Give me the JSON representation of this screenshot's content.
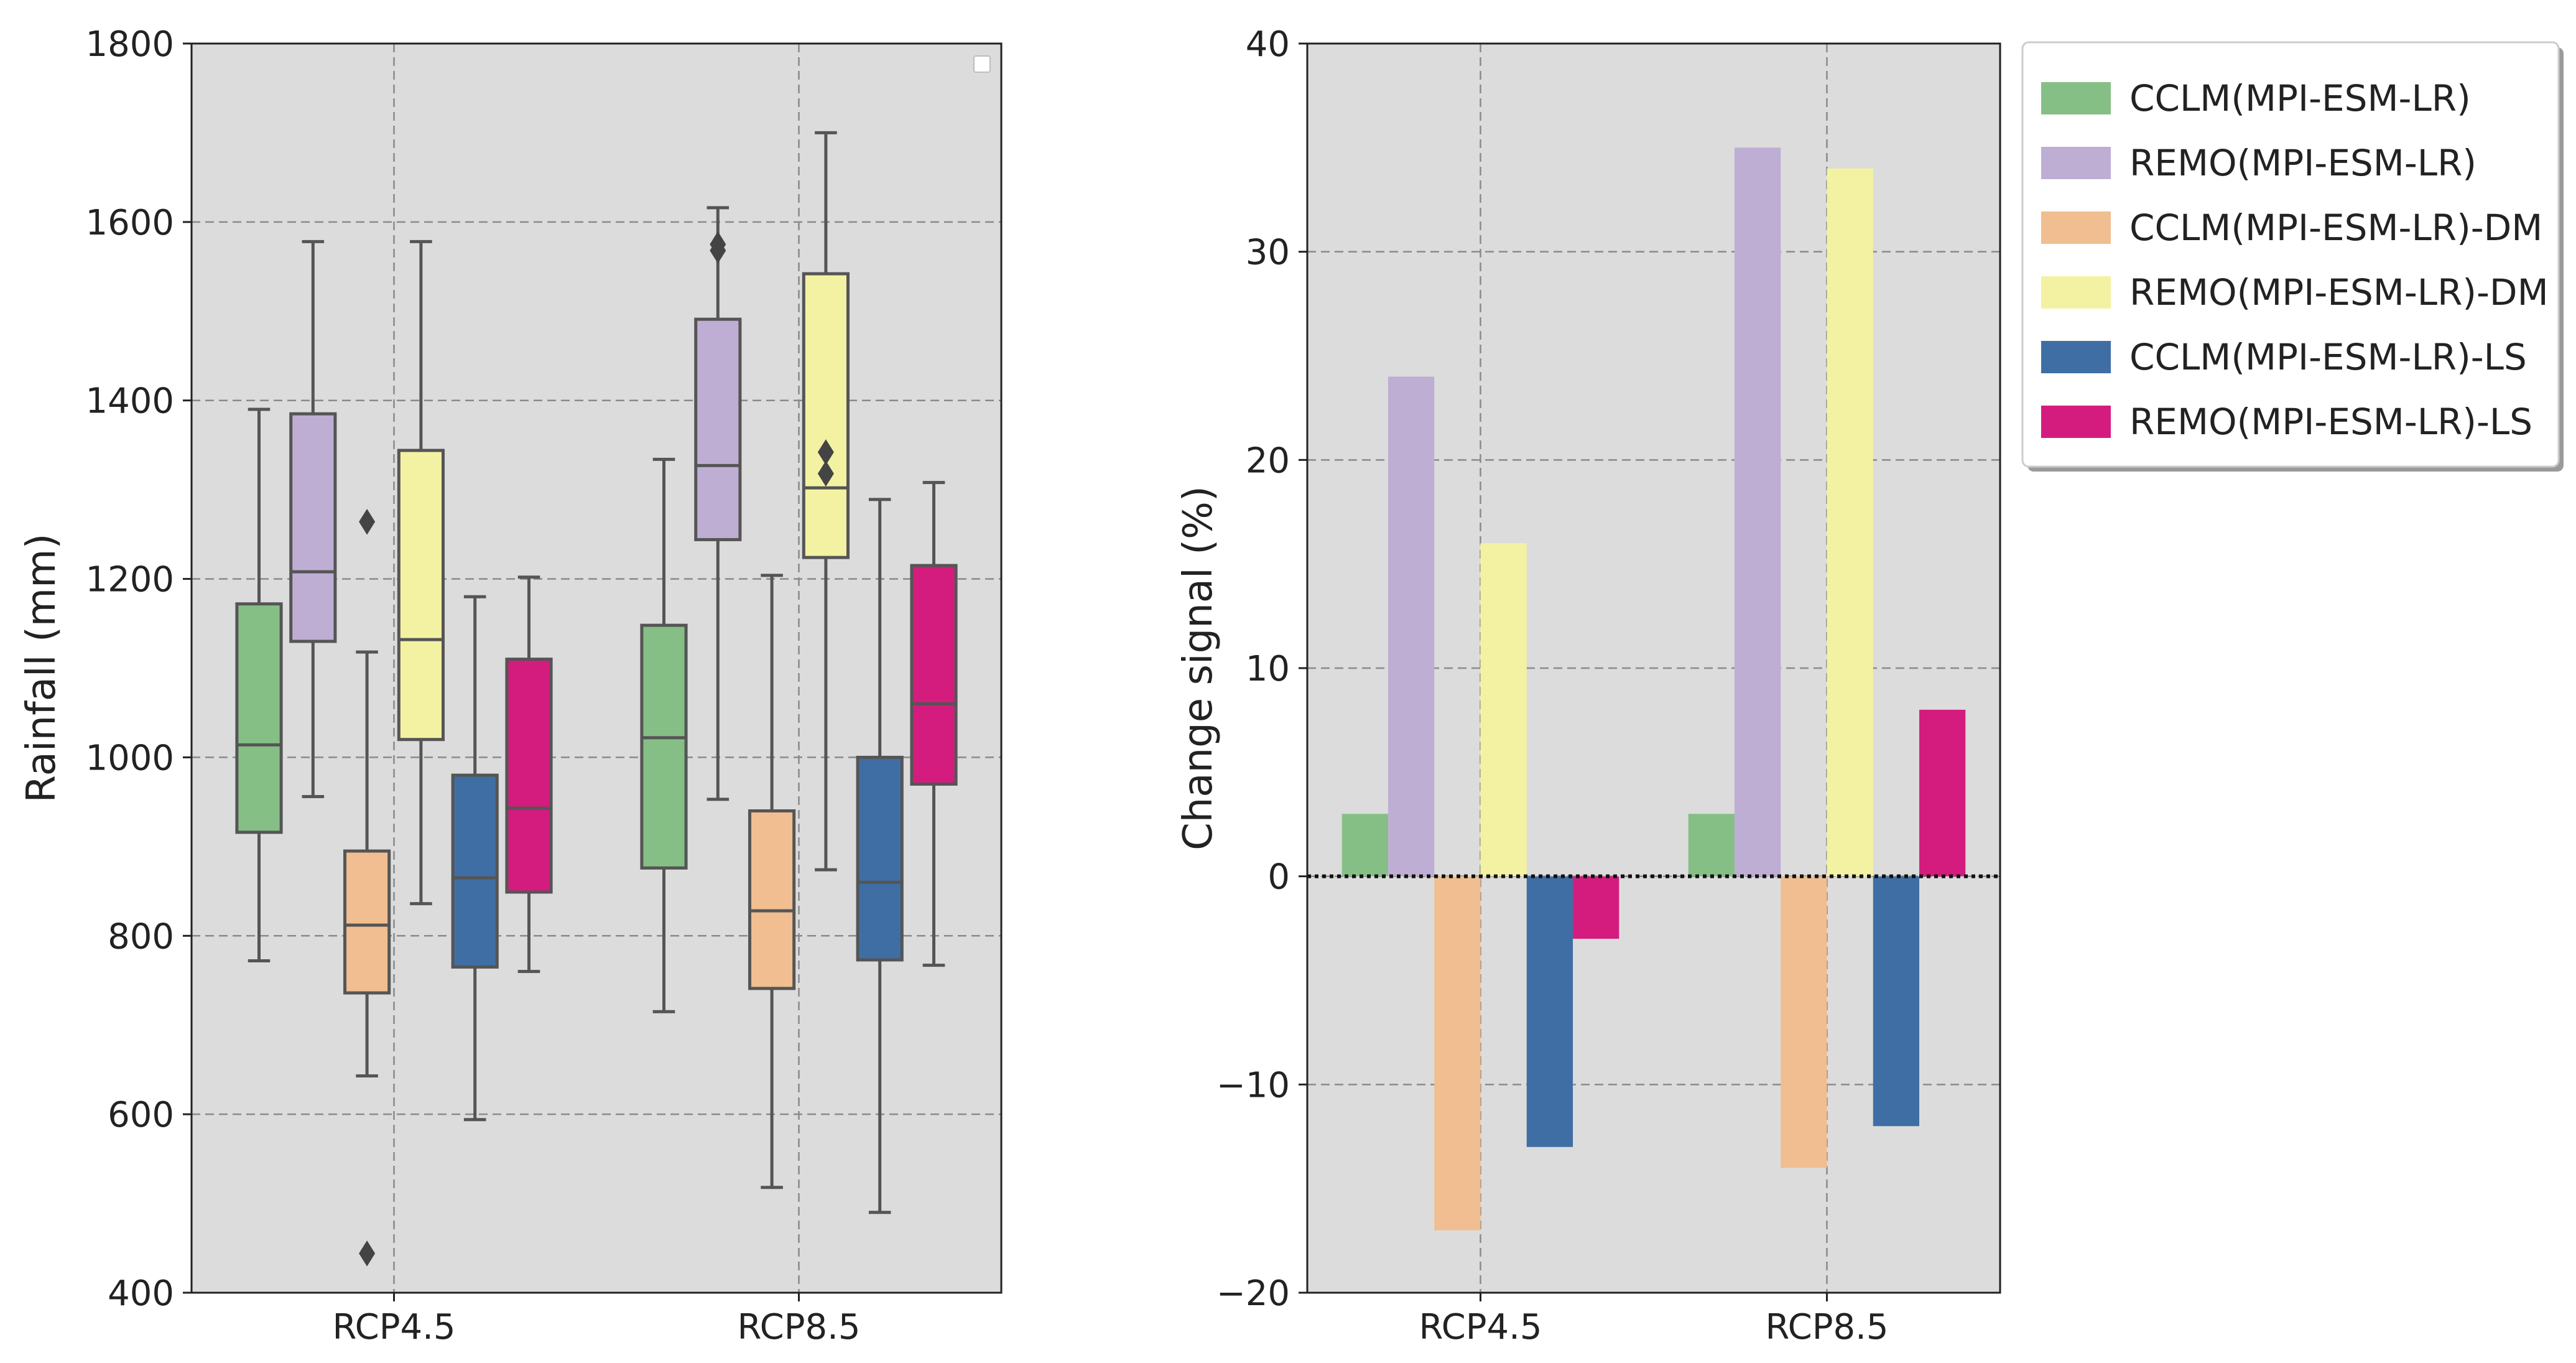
{
  "chart_data": [
    {
      "type": "boxplot",
      "title": "",
      "xlabel": "",
      "ylabel": "Rainfall (mm)",
      "ylim": [
        400,
        1800
      ],
      "yticks": [
        "400",
        "600",
        "800",
        "1000",
        "1200",
        "1400",
        "1600",
        "1800"
      ],
      "categories": [
        "RCP4.5",
        "RCP8.5"
      ],
      "grid": true,
      "legend": "top-right (empty)",
      "series": [
        {
          "name": "CCLM(MPI-ESM-LR)",
          "color": "#86bf86",
          "boxes": [
            {
              "whislo": 772,
              "q1": 916,
              "med": 1014,
              "q3": 1172,
              "whishi": 1390,
              "fliers": []
            },
            {
              "whislo": 715,
              "q1": 876,
              "med": 1022,
              "q3": 1148,
              "whishi": 1334,
              "fliers": []
            }
          ]
        },
        {
          "name": "REMO(MPI-ESM-LR)",
          "color": "#beaed4",
          "boxes": [
            {
              "whislo": 956,
              "q1": 1130,
              "med": 1208,
              "q3": 1385,
              "whishi": 1578,
              "fliers": []
            },
            {
              "whislo": 953,
              "q1": 1244,
              "med": 1327,
              "q3": 1491,
              "whishi": 1616,
              "fliers": [
                1568,
                1575
              ]
            }
          ]
        },
        {
          "name": "CCLM(MPI-ESM-LR)-DM",
          "color": "#f0be90",
          "boxes": [
            {
              "whislo": 643,
              "q1": 736,
              "med": 812,
              "q3": 895,
              "whishi": 1118,
              "fliers": [
                1264,
                444
              ]
            },
            {
              "whislo": 518,
              "q1": 741,
              "med": 828,
              "q3": 940,
              "whishi": 1204,
              "fliers": []
            }
          ]
        },
        {
          "name": "REMO(MPI-ESM-LR)-DM",
          "color": "#f2f2a2",
          "boxes": [
            {
              "whislo": 836,
              "q1": 1020,
              "med": 1132,
              "q3": 1344,
              "whishi": 1578,
              "fliers": []
            },
            {
              "whislo": 874,
              "q1": 1224,
              "med": 1302,
              "q3": 1542,
              "whishi": 1700,
              "fliers": [
                1318,
                1342
              ]
            }
          ]
        },
        {
          "name": "CCLM(MPI-ESM-LR)-LS",
          "color": "#3f6ea5",
          "boxes": [
            {
              "whislo": 594,
              "q1": 765,
              "med": 865,
              "q3": 980,
              "whishi": 1180,
              "fliers": []
            },
            {
              "whislo": 490,
              "q1": 773,
              "med": 860,
              "q3": 1000,
              "whishi": 1289,
              "fliers": []
            }
          ]
        },
        {
          "name": "REMO(MPI-ESM-LR)-LS",
          "color": "#d41c7f",
          "boxes": [
            {
              "whislo": 760,
              "q1": 849,
              "med": 943,
              "q3": 1110,
              "whishi": 1202,
              "fliers": []
            },
            {
              "whislo": 767,
              "q1": 970,
              "med": 1060,
              "q3": 1215,
              "whishi": 1308,
              "fliers": []
            }
          ]
        }
      ]
    },
    {
      "type": "bar",
      "title": "",
      "xlabel": "",
      "ylabel": "Change signal (%)",
      "ylim": [
        -20,
        40
      ],
      "yticks": [
        "−20",
        "−10",
        "0",
        "10",
        "20",
        "30",
        "40"
      ],
      "categories": [
        "RCP4.5",
        "RCP8.5"
      ],
      "grid": true,
      "legend": "outside-right",
      "series": [
        {
          "name": "CCLM(MPI-ESM-LR)",
          "color": "#86bf86",
          "values": [
            3,
            3
          ]
        },
        {
          "name": "REMO(MPI-ESM-LR)",
          "color": "#beaed4",
          "values": [
            24,
            35
          ]
        },
        {
          "name": "CCLM(MPI-ESM-LR)-DM",
          "color": "#f0be90",
          "values": [
            -17,
            -14
          ]
        },
        {
          "name": "REMO(MPI-ESM-LR)-DM",
          "color": "#f2f2a2",
          "values": [
            16,
            34
          ]
        },
        {
          "name": "CCLM(MPI-ESM-LR)-LS",
          "color": "#3f6ea5",
          "values": [
            -13,
            -12
          ]
        },
        {
          "name": "REMO(MPI-ESM-LR)-LS",
          "color": "#d41c7f",
          "values": [
            -3,
            8
          ]
        }
      ]
    }
  ]
}
